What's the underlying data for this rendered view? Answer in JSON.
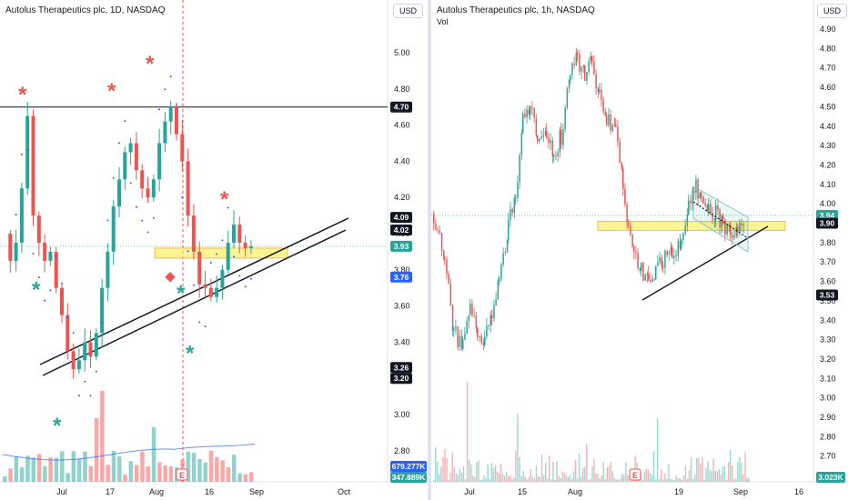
{
  "chart_data": [
    {
      "type": "candlestick",
      "title": "Autolus Therapeutics plc, 1D, NASDAQ",
      "currency": "USD",
      "ylim": [
        2.62,
        5.22
      ],
      "y_ticks": [
        "5.00",
        "4.80",
        "4.60",
        "4.40",
        "4.20",
        "4.00",
        "3.80",
        "3.60",
        "3.40",
        "3.20",
        "3.00",
        "2.80"
      ],
      "x_ticks": [
        "Jul",
        "17",
        "Aug",
        "16",
        "Sep",
        "Oct"
      ],
      "price_labels": [
        {
          "text": "4.70",
          "value": 4.7,
          "bg": "#131722"
        },
        {
          "text": "4.09",
          "value": 4.09,
          "bg": "#131722"
        },
        {
          "text": "4.02",
          "value": 4.02,
          "bg": "#131722"
        },
        {
          "text": "3.93",
          "value": 3.93,
          "bg": "#26a69a"
        },
        {
          "text": "3.76",
          "value": 3.76,
          "bg": "#2962ff"
        },
        {
          "text": "3.26",
          "value": 3.26,
          "bg": "#131722"
        },
        {
          "text": "3.20",
          "value": 3.2,
          "bg": "#131722"
        }
      ],
      "volume_labels": [
        "679.277K",
        "347.889K"
      ],
      "resistance_level": 4.7,
      "highlight_zone": [
        3.86,
        3.91
      ],
      "marker_label": "E"
    },
    {
      "type": "candlestick",
      "title": "Autolus Therapeutics plc, 1h, NASDAQ",
      "subtitle": "Vol",
      "currency": "USD",
      "ylim": [
        2.62,
        4.98
      ],
      "y_ticks": [
        "4.90",
        "4.80",
        "4.70",
        "4.60",
        "4.50",
        "4.40",
        "4.30",
        "4.20",
        "4.10",
        "4.00",
        "3.90",
        "3.80",
        "3.70",
        "3.60",
        "3.50",
        "3.40",
        "3.30",
        "3.20",
        "3.10",
        "3.00",
        "2.90",
        "2.80",
        "2.70"
      ],
      "x_ticks": [
        "Jul",
        "15",
        "Aug",
        "19",
        "Sep",
        "16"
      ],
      "price_labels": [
        {
          "text": "3.94",
          "value": 3.94,
          "bg": "#26a69a"
        },
        {
          "text": "3.90",
          "value": 3.9,
          "bg": "#131722"
        },
        {
          "text": "3.53",
          "value": 3.53,
          "bg": "#131722"
        }
      ],
      "volume_labels": [
        "3.023K"
      ],
      "highlight_zone": [
        3.86,
        3.91
      ],
      "marker_label": "E"
    }
  ]
}
